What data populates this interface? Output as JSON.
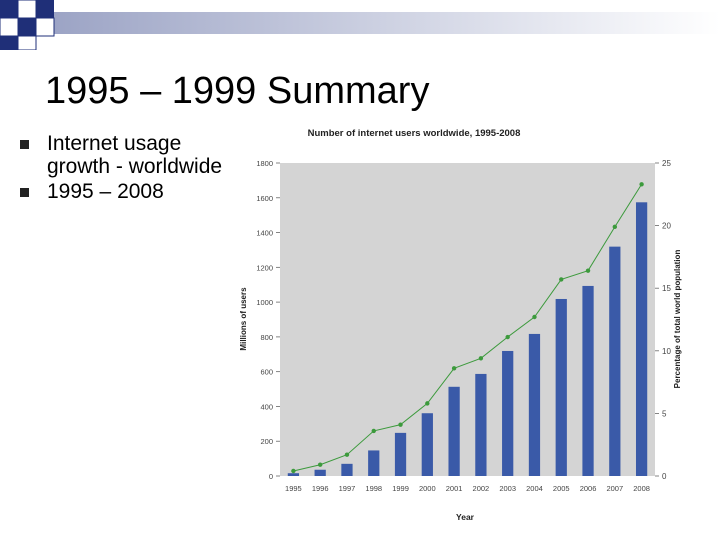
{
  "slide": {
    "title": "1995 – 1999 Summary",
    "bullets": [
      "Internet usage growth - worldwide",
      "1995 – 2008"
    ]
  },
  "colors": {
    "plot_bg": "#d4d4d4",
    "bar": "#3a5aa8",
    "line": "#3c9a3c",
    "deco_square": "#1f2f78"
  },
  "chart_data": {
    "type": "bar",
    "title": "Number of internet users worldwide, 1995-2008",
    "xlabel": "Year",
    "ylabel": "Millions of users",
    "y2label": "Percentage of total world population",
    "categories": [
      "1995",
      "1996",
      "1997",
      "1998",
      "1999",
      "2000",
      "2001",
      "2002",
      "2003",
      "2004",
      "2005",
      "2006",
      "2007",
      "2008"
    ],
    "ylim": [
      0,
      1800
    ],
    "y2lim": [
      0,
      25
    ],
    "yticks": [
      0,
      200,
      400,
      600,
      800,
      1000,
      1200,
      1400,
      1600,
      1800
    ],
    "y2ticks": [
      0,
      5,
      10,
      15,
      20,
      25
    ],
    "grid": false,
    "series": [
      {
        "type": "bar",
        "axis": "left",
        "values": [
          16,
          36,
          70,
          147,
          248,
          361,
          513,
          587,
          719,
          817,
          1018,
          1093,
          1319,
          1574
        ]
      },
      {
        "type": "line",
        "axis": "right",
        "values": [
          0.4,
          0.9,
          1.7,
          3.6,
          4.1,
          5.8,
          8.6,
          9.4,
          11.1,
          12.7,
          15.7,
          16.4,
          19.9,
          23.3
        ]
      }
    ]
  }
}
